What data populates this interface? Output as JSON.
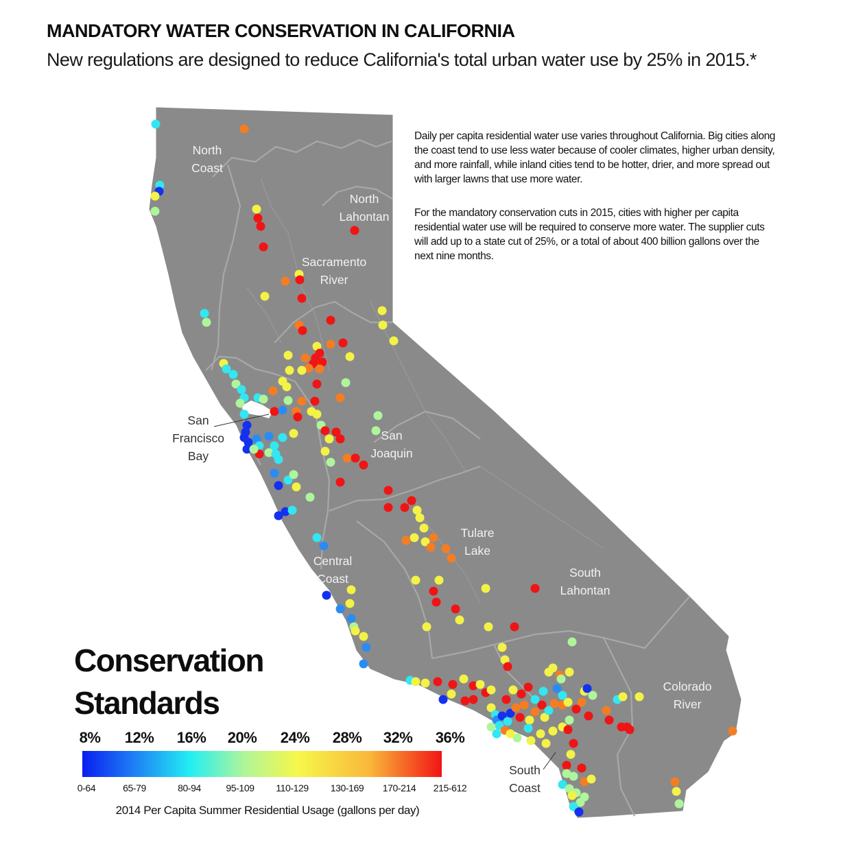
{
  "title": "MANDATORY WATER CONSERVATION IN CALIFORNIA",
  "subtitle": "New regulations are designed to reduce California's total urban water use by 25% in 2015.*",
  "info": {
    "p1": "Daily per capita residential water use varies throughout California. Big cities along the coast tend to use less water because of cooler climates, higher urban density, and more rainfall, while inland cities tend to be hotter, drier, and more spread out with larger lawns that use more water.",
    "p2": "For the mandatory conservation cuts in 2015, cities with higher per capita residential water use will be required to conserve more water. The supplier cuts will add up to a state cut of 25%, or a total of about 400 billion gallons over the next nine months."
  },
  "regions": {
    "north_coast": "North\nCoast",
    "north_lahontan": "North\nLahontan",
    "sacramento_river": "Sacramento\nRiver",
    "san_joaquin": "San\nJoaquin",
    "tulare_lake": "Tulare\nLake",
    "central_coast": "Central\nCoast",
    "south_lahontan": "South\nLahontan",
    "colorado_river": "Colorado\nRiver",
    "south_coast": "South\nCoast",
    "sf_bay": "San\nFrancisco\nBay"
  },
  "legend": {
    "title": "Conservation\nStandards",
    "percentages": [
      "8%",
      "12%",
      "16%",
      "20%",
      "24%",
      "28%",
      "32%",
      "36%"
    ],
    "usage_ranges": [
      "0-64",
      "65-79",
      "80-94",
      "95-109",
      "110-129",
      "130-169",
      "170-214",
      "215-612"
    ],
    "axis_label": "2014 Per Capita Summer Residential Usage (gallons per day)"
  },
  "colors": {
    "land": "#8a8a8a",
    "boundary": "#a6a6a6",
    "tiers": [
      "#1430f0",
      "#2a8cf2",
      "#33e6f2",
      "#aef59b",
      "#f3f247",
      "#f5c636",
      "#f47d22",
      "#f01414"
    ]
  }
}
